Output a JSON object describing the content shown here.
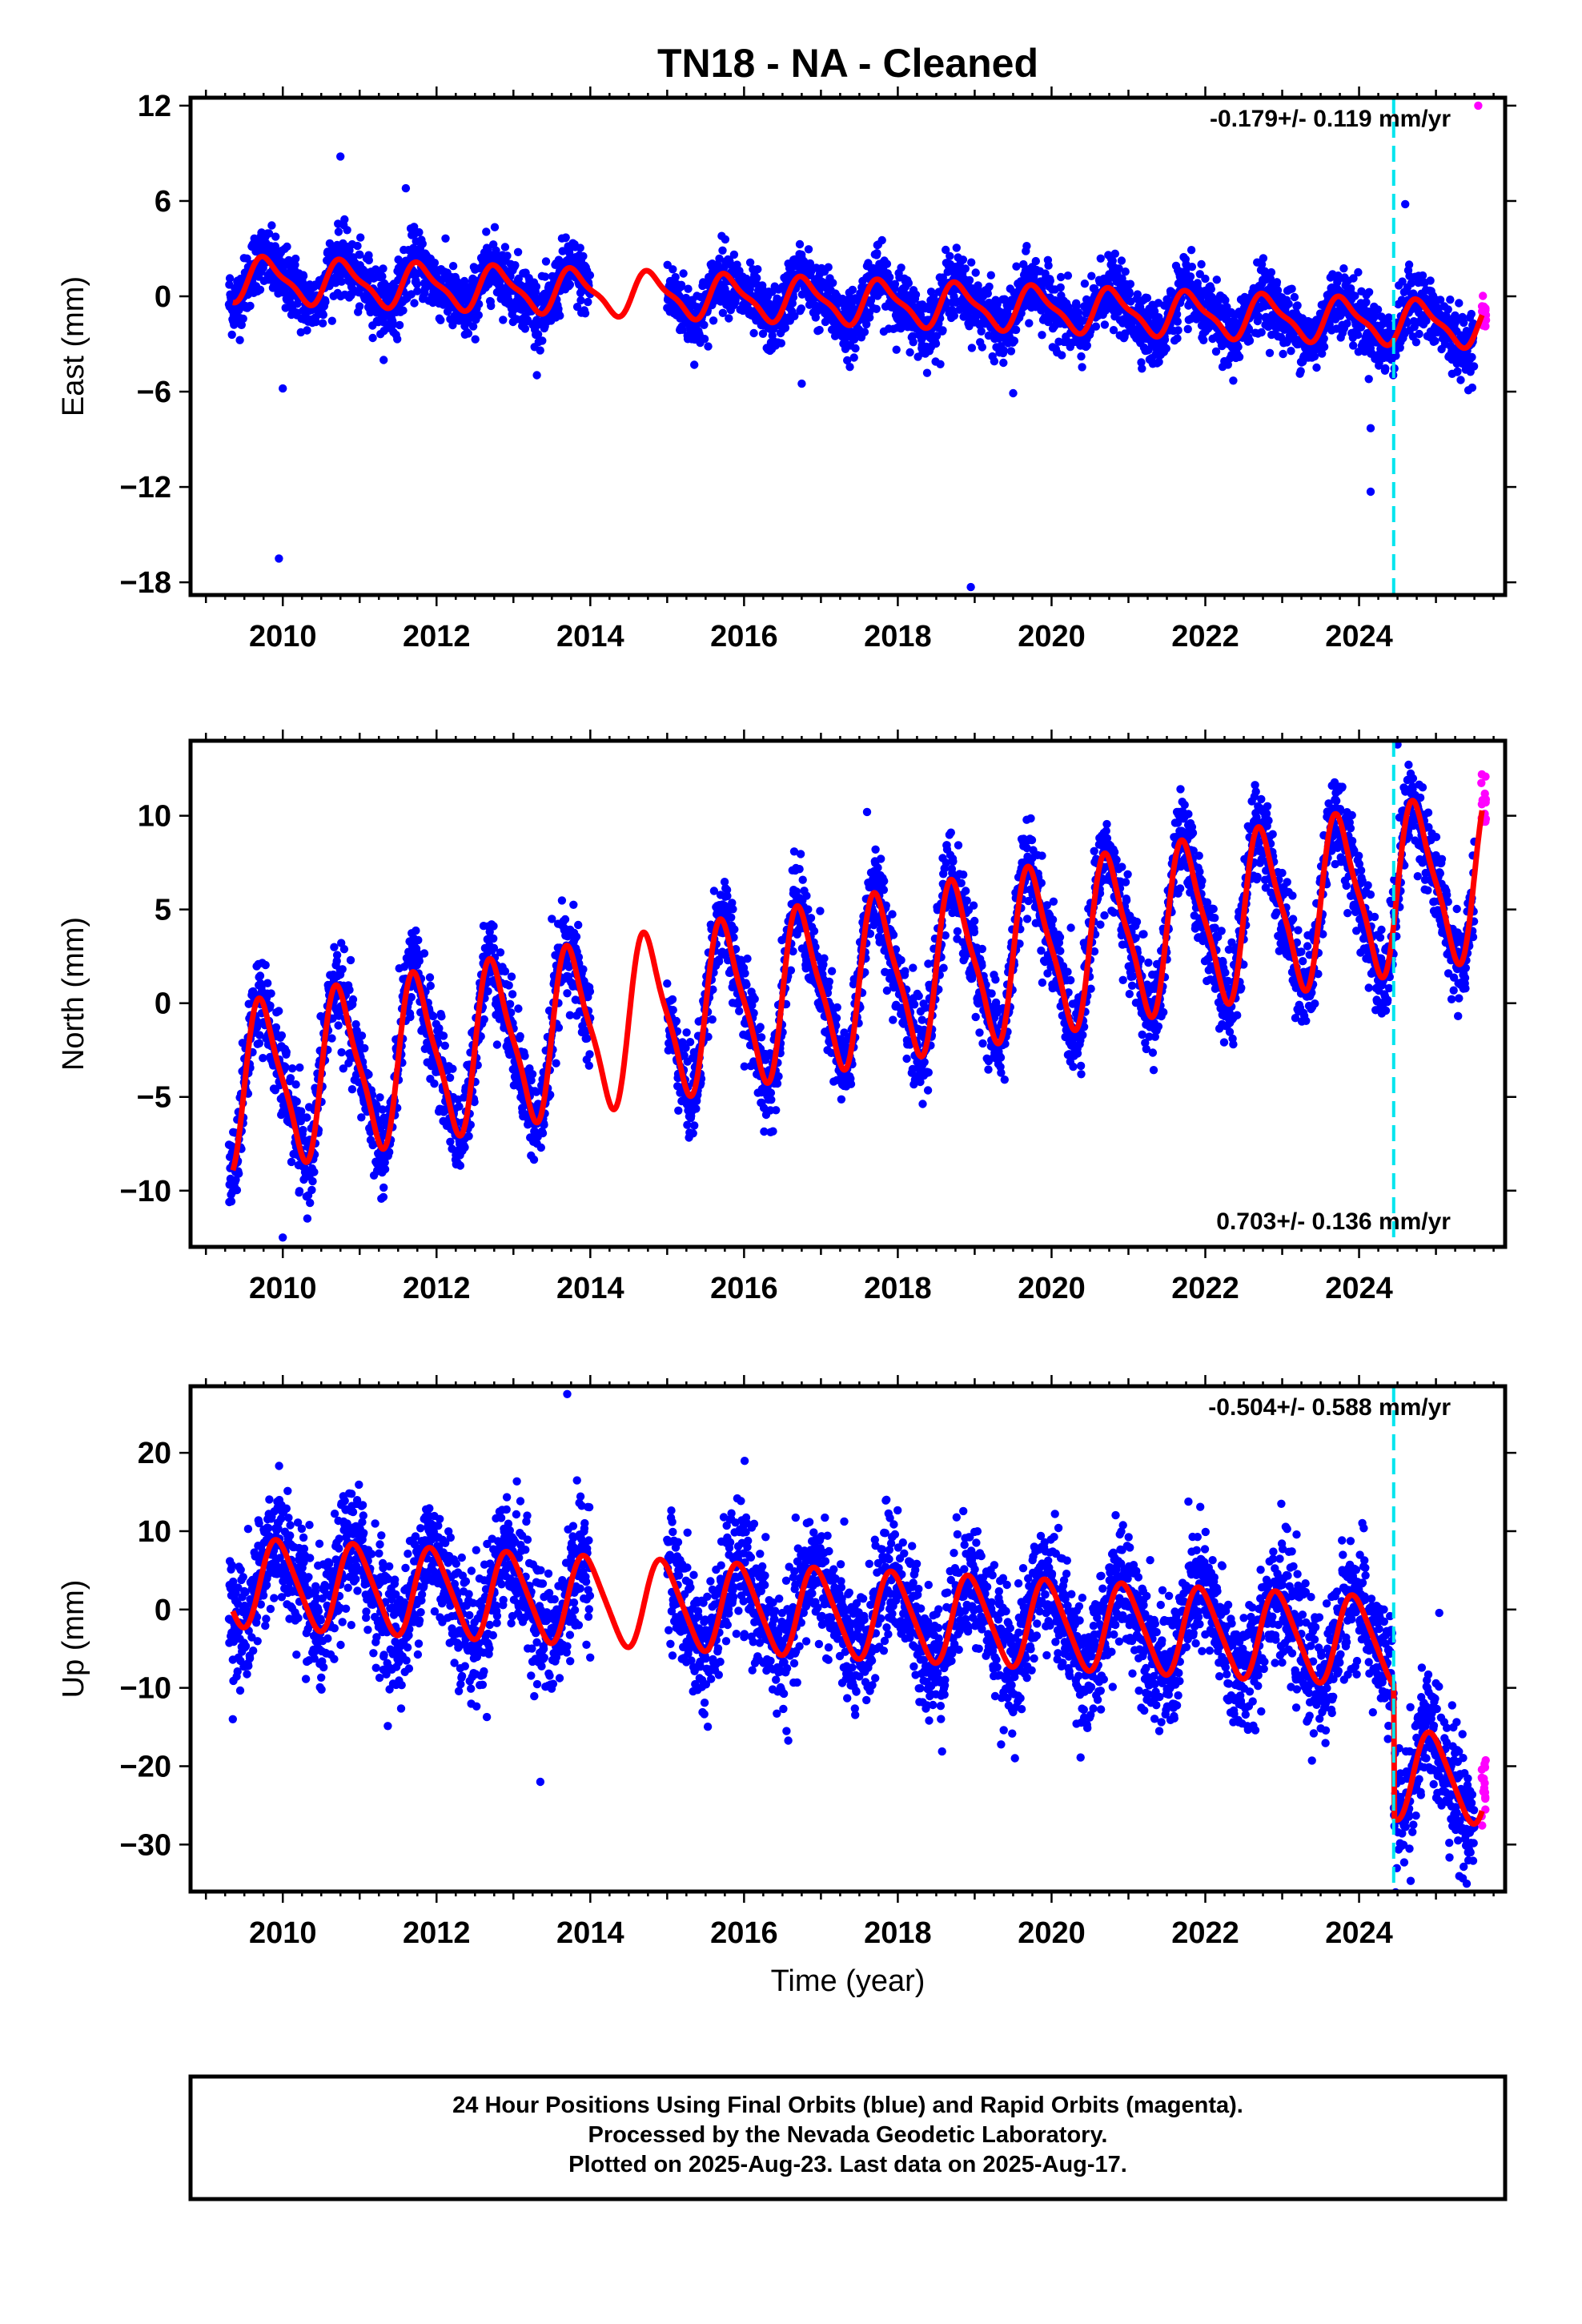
{
  "title": "TN18  - NA - Cleaned",
  "footer": {
    "lines": [
      "24 Hour Positions Using Final Orbits (blue) and Rapid Orbits (magenta).",
      "Processed by the Nevada Geodetic Laboratory.",
      "Plotted on 2025-Aug-23. Last data on 2025-Aug-17."
    ]
  },
  "colors": {
    "final_orbits": "#0000ff",
    "rapid_orbits": "#ff00ff",
    "model_fit": "#ff0000",
    "event_line": "#00e5ee",
    "frame": "#000000"
  },
  "chart_data": [
    {
      "type": "scatter",
      "name": "east",
      "ylabel": "East (mm)",
      "xlabel": "",
      "rate_text": "-0.179+/- 0.119 mm/yr",
      "rate_position": "top-right",
      "xlim": [
        2008.8,
        2025.9
      ],
      "ylim": [
        -18.8,
        12.5
      ],
      "x_ticks": [
        2010,
        2012,
        2014,
        2016,
        2018,
        2020,
        2022,
        2024
      ],
      "y_ticks": [
        12,
        6,
        0,
        -6,
        -12,
        -18
      ],
      "y_tick_labels": [
        "12",
        "6",
        "0",
        "−6",
        "−12",
        "−18"
      ],
      "event_line_x": 2024.45,
      "final_segments": [
        [
          2009.3,
          2014.0
        ],
        [
          2015.0,
          2025.5
        ]
      ],
      "rapid_range": [
        2025.45,
        2025.63
      ],
      "model": {
        "offset": 1.1,
        "trend": -0.179,
        "annual_amp": 1.3,
        "annual_phase": 0.55,
        "semi_amp": 0.4,
        "noise": 1.0
      },
      "model_range": [
        2009.35,
        2025.6
      ],
      "outliers": [
        [
          2009.95,
          -16.5
        ],
        [
          2010.0,
          -5.8
        ],
        [
          2010.75,
          8.8
        ],
        [
          2011.6,
          6.8
        ],
        [
          2018.95,
          -18.3
        ],
        [
          2016.75,
          -5.5
        ],
        [
          2019.5,
          -6.1
        ],
        [
          2024.15,
          -8.3
        ],
        [
          2024.15,
          -12.3
        ],
        [
          2024.6,
          5.8
        ],
        [
          2025.55,
          12.0
        ]
      ]
    },
    {
      "type": "scatter",
      "name": "north",
      "ylabel": "North (mm)",
      "xlabel": "",
      "rate_text": "0.703+/- 0.136 mm/yr",
      "rate_position": "bottom-right",
      "xlim": [
        2008.8,
        2025.9
      ],
      "ylim": [
        -13,
        14
      ],
      "x_ticks": [
        2010,
        2012,
        2014,
        2016,
        2018,
        2020,
        2022,
        2024
      ],
      "y_ticks": [
        10,
        5,
        0,
        -5,
        -10
      ],
      "y_tick_labels": [
        "10",
        "5",
        "0",
        "−5",
        "−10"
      ],
      "event_line_x": 2024.45,
      "final_segments": [
        [
          2009.3,
          2014.0
        ],
        [
          2015.0,
          2025.5
        ]
      ],
      "rapid_range": [
        2025.45,
        2025.63
      ],
      "model": {
        "offset": -4.6,
        "trend": 0.703,
        "annual_amp": 4.2,
        "annual_phase": 0.5,
        "semi_amp": 1.0,
        "noise": 1.2
      },
      "model_range": [
        2009.35,
        2025.6
      ],
      "outliers": [
        [
          2010.0,
          -12.5
        ],
        [
          2013.5,
          4.5
        ],
        [
          2017.6,
          10.2
        ],
        [
          2024.5,
          13.8
        ]
      ]
    },
    {
      "type": "scatter",
      "name": "up",
      "ylabel": "Up (mm)",
      "xlabel": "Time (year)",
      "rate_text": "-0.504+/- 0.588 mm/yr",
      "rate_position": "top-right",
      "xlim": [
        2008.8,
        2025.9
      ],
      "ylim": [
        -36,
        28.5
      ],
      "x_ticks": [
        2010,
        2012,
        2014,
        2016,
        2018,
        2020,
        2022,
        2024
      ],
      "y_ticks": [
        20,
        10,
        0,
        -10,
        -20,
        -30
      ],
      "y_tick_labels": [
        "20",
        "10",
        "0",
        "−10",
        "−20",
        "−30"
      ],
      "event_line_x": 2024.45,
      "final_segments": [
        [
          2009.3,
          2014.0
        ],
        [
          2015.0,
          2025.5
        ]
      ],
      "rapid_range": [
        2025.45,
        2025.63
      ],
      "step": {
        "at": 2024.45,
        "size": -17.0
      },
      "model": {
        "offset": 3.5,
        "trend": -0.504,
        "annual_amp": 5.5,
        "annual_phase": 0.7,
        "semi_amp": 0.8,
        "noise": 4.0
      },
      "model_range": [
        2009.35,
        2025.6
      ],
      "outliers": [
        [
          2013.7,
          27.5
        ],
        [
          2009.35,
          -14.0
        ],
        [
          2013.35,
          -22.0
        ],
        [
          2025.4,
          -35.0
        ]
      ]
    }
  ]
}
